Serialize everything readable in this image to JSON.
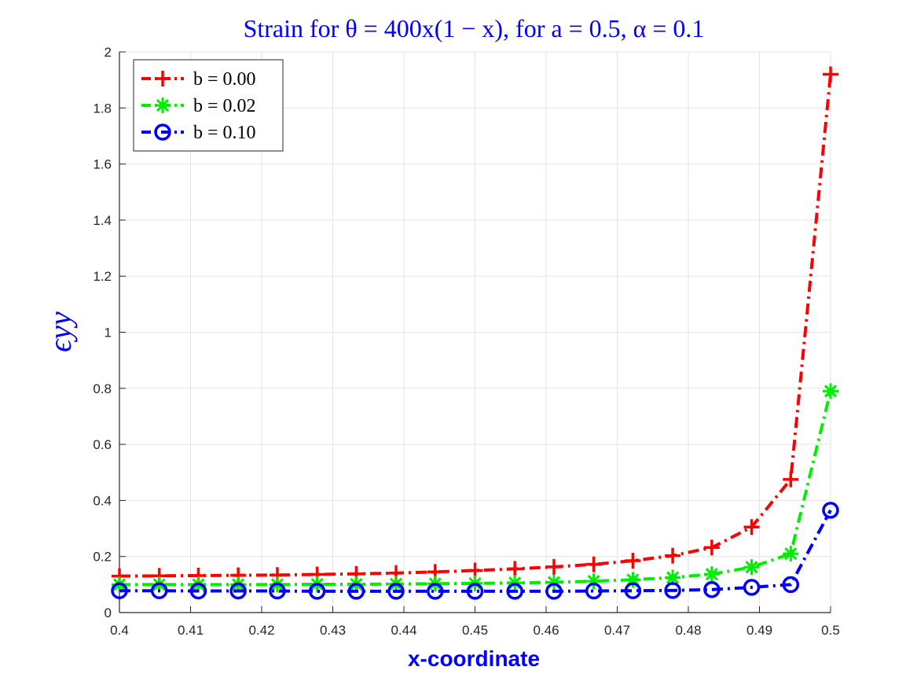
{
  "chart_data": {
    "type": "line",
    "title": "Strain for θ = 400x(1 − x), for a = 0.5, α = 0.1",
    "xlabel": "x-coordinate",
    "ylabel": "ϵyy",
    "xlim": [
      0.4,
      0.5
    ],
    "ylim": [
      0,
      2
    ],
    "xticks": [
      0.4,
      0.41,
      0.42,
      0.43,
      0.44,
      0.45,
      0.46,
      0.47,
      0.48,
      0.49,
      0.5
    ],
    "yticks": [
      0,
      0.2,
      0.4,
      0.6,
      0.8,
      1,
      1.2,
      1.4,
      1.6,
      1.8,
      2
    ],
    "xtick_labels": [
      "0.4",
      "0.41",
      "0.42",
      "0.43",
      "0.44",
      "0.45",
      "0.46",
      "0.47",
      "0.48",
      "0.49",
      "0.5"
    ],
    "ytick_labels": [
      "0",
      "0.2",
      "0.4",
      "0.6",
      "0.8",
      "1",
      "1.2",
      "1.4",
      "1.6",
      "1.8",
      "2"
    ],
    "grid": true,
    "legend_position": "top-left",
    "x": [
      0.4,
      0.4056,
      0.4111,
      0.4167,
      0.4222,
      0.4278,
      0.4333,
      0.4389,
      0.4444,
      0.45,
      0.4556,
      0.4611,
      0.4667,
      0.4722,
      0.4778,
      0.4833,
      0.4889,
      0.4944,
      0.5
    ],
    "series": [
      {
        "name": "b = 0.00",
        "color": "#ff0000",
        "marker": "plus",
        "values": [
          0.13,
          0.131,
          0.132,
          0.133,
          0.134,
          0.136,
          0.138,
          0.141,
          0.145,
          0.15,
          0.156,
          0.163,
          0.172,
          0.185,
          0.203,
          0.232,
          0.305,
          0.475,
          1.92
        ]
      },
      {
        "name": "b = 0.02",
        "color": "#00ee00",
        "marker": "asterisk",
        "values": [
          0.1,
          0.1,
          0.1,
          0.1,
          0.1,
          0.101,
          0.101,
          0.102,
          0.103,
          0.104,
          0.106,
          0.108,
          0.112,
          0.117,
          0.125,
          0.137,
          0.162,
          0.21,
          0.79
        ]
      },
      {
        "name": "b = 0.10",
        "color": "#0000ff",
        "marker": "circle",
        "values": [
          0.078,
          0.078,
          0.077,
          0.077,
          0.077,
          0.076,
          0.076,
          0.076,
          0.076,
          0.076,
          0.076,
          0.076,
          0.077,
          0.078,
          0.079,
          0.082,
          0.09,
          0.1,
          0.365
        ]
      }
    ]
  }
}
